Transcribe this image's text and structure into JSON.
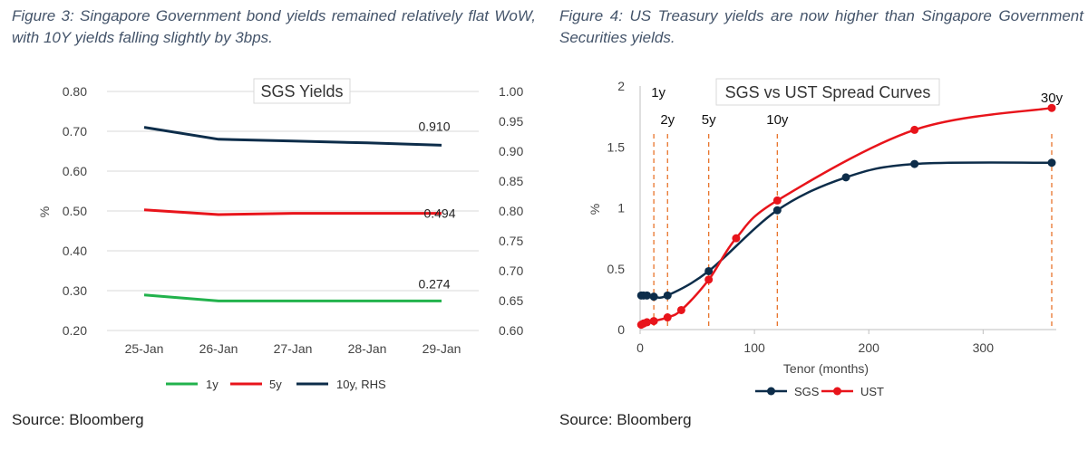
{
  "left_caption": "Figure 3: Singapore Government bond yields remained relatively flat WoW, with 10Y yields falling slightly by 3bps.",
  "right_caption": "Figure 4: US Treasury yields are now higher than Singapore Government Securities yields.",
  "left_source": "Source: Bloomberg",
  "right_source": "Source: Bloomberg",
  "chart_data": [
    {
      "type": "line",
      "title": "SGS Yields",
      "categories": [
        "25-Jan",
        "26-Jan",
        "27-Jan",
        "28-Jan",
        "29-Jan"
      ],
      "ylabel": "%",
      "ylim": [
        0.2,
        0.8
      ],
      "yticks": [
        "0.80",
        "0.70",
        "0.60",
        "0.50",
        "0.40",
        "0.30",
        "0.20"
      ],
      "y2lim": [
        0.6,
        1.0
      ],
      "y2ticks": [
        "1.00",
        "0.95",
        "0.90",
        "0.85",
        "0.80",
        "0.75",
        "0.70",
        "0.65",
        "0.60"
      ],
      "grid": "horizontal",
      "legend_position": "bottom",
      "series": [
        {
          "name": "1y",
          "axis": "left",
          "color": "#22b24c",
          "values": [
            0.289,
            0.274,
            0.274,
            0.274,
            0.274
          ],
          "end_label": "0.274"
        },
        {
          "name": "5y",
          "axis": "left",
          "color": "#e8141b",
          "values": [
            0.503,
            0.491,
            0.494,
            0.494,
            0.494
          ],
          "end_label": "0.494"
        },
        {
          "name": "10y, RHS",
          "axis": "right",
          "color": "#0d2d4a",
          "values": [
            0.94,
            0.92,
            0.917,
            0.914,
            0.91
          ],
          "end_label": "0.910"
        }
      ]
    },
    {
      "type": "line",
      "title": "SGS vs UST Spread Curves",
      "xlabel": "Tenor (months)",
      "ylabel": "%",
      "xlim": [
        0,
        360
      ],
      "ylim": [
        0,
        2
      ],
      "xticks": [
        "0",
        "100",
        "200",
        "300"
      ],
      "yticks": [
        "2",
        "1.5",
        "1",
        "0.5",
        "0"
      ],
      "legend_position": "bottom",
      "tenor_markers": [
        {
          "label": "1y",
          "x": 12
        },
        {
          "label": "2y",
          "x": 24
        },
        {
          "label": "5y",
          "x": 60
        },
        {
          "label": "10y",
          "x": 120
        },
        {
          "label": "30y",
          "x": 360
        }
      ],
      "series": [
        {
          "name": "SGS",
          "color": "#0d2d4a",
          "x": [
            1,
            3,
            6,
            12,
            24,
            60,
            120,
            180,
            240,
            360
          ],
          "y": [
            0.28,
            0.28,
            0.28,
            0.27,
            0.28,
            0.48,
            0.98,
            1.25,
            1.36,
            1.37
          ]
        },
        {
          "name": "UST",
          "color": "#e8141b",
          "x": [
            1,
            3,
            6,
            12,
            24,
            36,
            60,
            84,
            120,
            240,
            360
          ],
          "y": [
            0.04,
            0.05,
            0.06,
            0.07,
            0.1,
            0.16,
            0.41,
            0.75,
            1.06,
            1.64,
            1.82
          ]
        }
      ]
    }
  ]
}
